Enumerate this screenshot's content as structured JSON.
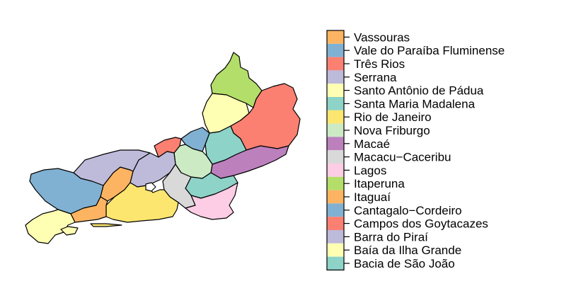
{
  "map": {
    "regions": [
      {
        "name": "Vassouras",
        "color": "#FDB462"
      },
      {
        "name": "Vale do Paraíba Fluminense",
        "color": "#80B1D3"
      },
      {
        "name": "Três Rios",
        "color": "#FB8072"
      },
      {
        "name": "Serrana",
        "color": "#BEBADA"
      },
      {
        "name": "Santo Antônio de Pádua",
        "color": "#FFFFB3"
      },
      {
        "name": "Santa Maria Madalena",
        "color": "#8DD3C7"
      },
      {
        "name": "Rio de Janeiro",
        "color": "#FCE670"
      },
      {
        "name": "Nova Friburgo",
        "color": "#CCEBC5"
      },
      {
        "name": "Macaé",
        "color": "#BC80BD"
      },
      {
        "name": "Macacu-Caceribu",
        "color": "#D9D9D9"
      },
      {
        "name": "Lagos",
        "color": "#FCCDE5"
      },
      {
        "name": "Itaperuna",
        "color": "#B3DE69"
      },
      {
        "name": "Itaguaí",
        "color": "#FDB462"
      },
      {
        "name": "Cantagalo-Cordeiro",
        "color": "#80B1D3"
      },
      {
        "name": "Campos dos Goytacazes",
        "color": "#FB8072"
      },
      {
        "name": "Barra do Piraí",
        "color": "#BEBADA"
      },
      {
        "name": "Baía da Ilha Grande",
        "color": "#FFFFB3"
      },
      {
        "name": "Bacia de São João",
        "color": "#8DD3C7"
      }
    ]
  },
  "legend": {
    "position": "right",
    "labels": [
      "Vassouras",
      "Vale do Paraíba Fluminense",
      "Três Rios",
      "Serrana",
      "Santo Antônio de Pádua",
      "Santa Maria Madalena",
      "Rio de Janeiro",
      "Nova Friburgo",
      "Macaé",
      "Macacu−Caceribu",
      "Lagos",
      "Itaperuna",
      "Itaguaí",
      "Cantagalo−Cordeiro",
      "Campos dos Goytacazes",
      "Barra do Piraí",
      "Baía da Ilha Grande",
      "Bacia de São João"
    ]
  }
}
